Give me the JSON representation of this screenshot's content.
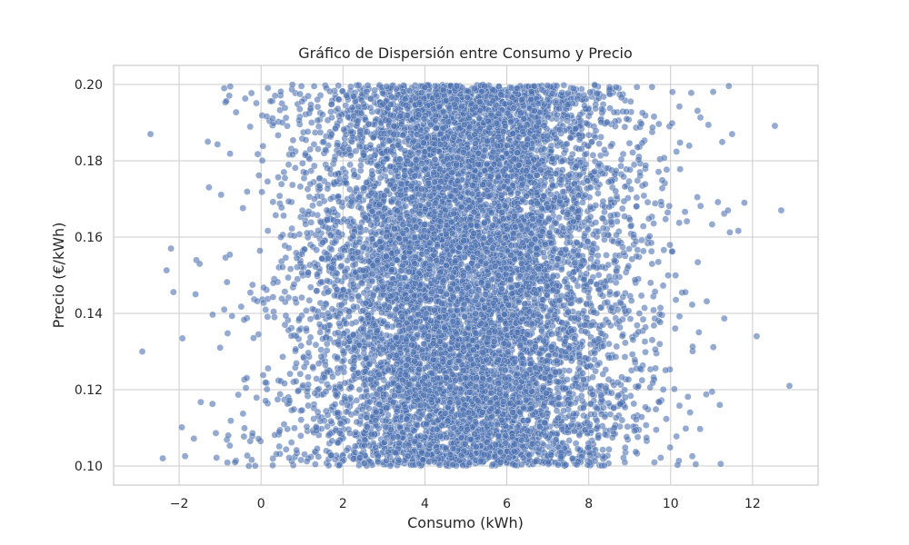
{
  "chart_data": {
    "type": "scatter",
    "title": "Gráfico de Dispersión entre Consumo y Precio",
    "xlabel": "Consumo (kWh)",
    "ylabel": "Precio (€/kWh)",
    "xlim": [
      -3.6,
      13.6
    ],
    "ylim": [
      0.095,
      0.205
    ],
    "xticks": [
      -2,
      0,
      2,
      4,
      6,
      8,
      10,
      12
    ],
    "xtick_labels": [
      "−2",
      "0",
      "2",
      "4",
      "6",
      "8",
      "10",
      "12"
    ],
    "yticks": [
      0.1,
      0.12,
      0.14,
      0.16,
      0.18,
      0.2
    ],
    "ytick_labels": [
      "0.10",
      "0.12",
      "0.14",
      "0.16",
      "0.18",
      "0.20"
    ],
    "grid": true,
    "series": [
      {
        "color": "#4c72b0",
        "x_distribution": {
          "mean": 5.0,
          "std": 2.0
        },
        "y_range": [
          0.1,
          0.2
        ],
        "point_count": 10000,
        "points_sample": [
          [
            -2.9,
            0.13
          ],
          [
            -2.7,
            0.187
          ],
          [
            -2.4,
            0.102
          ],
          [
            -2.2,
            0.157
          ],
          [
            -1.6,
            0.145
          ],
          [
            -1.5,
            0.153
          ],
          [
            -1.3,
            0.185
          ],
          [
            -1.0,
            0.131
          ],
          [
            -0.9,
            0.141
          ],
          [
            -0.9,
            0.199
          ],
          [
            -0.8,
            0.108
          ],
          [
            -0.3,
            0.1
          ],
          [
            11.2,
            0.116
          ],
          [
            11.4,
            0.167
          ],
          [
            11.5,
            0.187
          ],
          [
            11.8,
            0.169
          ],
          [
            12.1,
            0.134
          ],
          [
            12.7,
            0.167
          ],
          [
            12.9,
            0.121
          ]
        ]
      }
    ]
  }
}
